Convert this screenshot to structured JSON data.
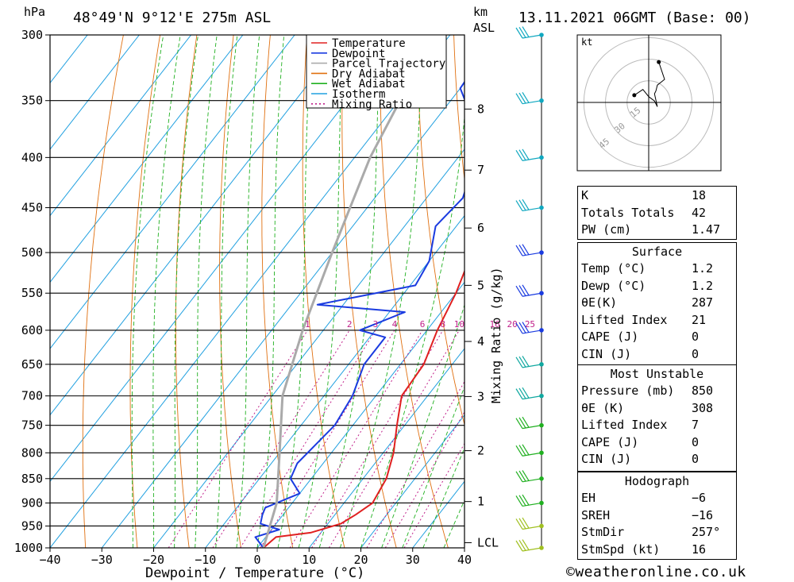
{
  "header": {
    "location": "48°49'N  9°12'E  275m  ASL",
    "datetime": "13.11.2021  06GMT  (Base: 00)",
    "hpa_unit": "hPa",
    "km_unit": "km",
    "asl_unit": "ASL"
  },
  "chart_data": {
    "type": "line",
    "title": "",
    "xlabel": "Dewpoint / Temperature (°C)",
    "ylabel": "hPa",
    "y2label": "Mixing Ratio (g/kg)",
    "x_ticks": [
      "−40",
      "−30",
      "−20",
      "−10",
      "0",
      "10",
      "20",
      "30",
      "40"
    ],
    "x_range": [
      -40,
      40
    ],
    "p_range": [
      1000,
      300
    ],
    "p_ticks": [
      "300",
      "350",
      "400",
      "450",
      "500",
      "550",
      "600",
      "650",
      "700",
      "750",
      "800",
      "850",
      "900",
      "950",
      "1000"
    ],
    "km_ticks": [
      {
        "label": "8",
        "p": 357
      },
      {
        "label": "7",
        "p": 412
      },
      {
        "label": "6",
        "p": 472
      },
      {
        "label": "5",
        "p": 540
      },
      {
        "label": "4",
        "p": 616
      },
      {
        "label": "3",
        "p": 701
      },
      {
        "label": "2",
        "p": 796
      },
      {
        "label": "1",
        "p": 897
      },
      {
        "label": "LCL",
        "p": 988
      }
    ],
    "mixing_ratio_labels": [
      "1",
      "2",
      "3",
      "4",
      "6",
      "8",
      "10",
      "16",
      "20",
      "25"
    ],
    "legend": [
      "Temperature",
      "Dewpoint",
      "Parcel Trajectory",
      "Dry Adiabat",
      "Wet Adiabat",
      "Isotherm",
      "Mixing Ratio"
    ],
    "colors": {
      "temperature": "#e02020",
      "dewpoint": "#1a3be0",
      "parcel": "#aaaaaa",
      "dry": "#e07010",
      "wet": "#20b020",
      "isotherm": "#20a0e0",
      "mixing": "#c0208a"
    },
    "series": [
      {
        "name": "Temperature",
        "points": [
          [
            1.2,
            1000
          ],
          [
            2,
            975
          ],
          [
            8,
            965
          ],
          [
            12.5,
            945
          ],
          [
            14,
            925
          ],
          [
            15.5,
            900
          ],
          [
            14.5,
            850
          ],
          [
            12,
            800
          ],
          [
            8.5,
            750
          ],
          [
            5,
            700
          ],
          [
            4.5,
            650
          ],
          [
            2,
            600
          ],
          [
            0,
            550
          ],
          [
            -3,
            500
          ],
          [
            -7,
            450
          ],
          [
            -10,
            400
          ],
          [
            -14,
            350
          ],
          [
            -17,
            300
          ]
        ]
      },
      {
        "name": "Dewpoint",
        "points": [
          [
            1.2,
            1000
          ],
          [
            -2,
            975
          ],
          [
            1.5,
            958
          ],
          [
            -3,
            945
          ],
          [
            -4,
            925
          ],
          [
            -4.5,
            910
          ],
          [
            0,
            880
          ],
          [
            -4,
            850
          ],
          [
            -5,
            820
          ],
          [
            -3.5,
            750
          ],
          [
            -4.5,
            700
          ],
          [
            -7,
            650
          ],
          [
            -7,
            610
          ],
          [
            -13,
            600
          ],
          [
            -7,
            575
          ],
          [
            -25,
            565
          ],
          [
            -9,
            540
          ],
          [
            -10,
            510
          ],
          [
            -14,
            470
          ],
          [
            -13,
            440
          ],
          [
            -18,
            385
          ],
          [
            -30,
            340
          ],
          [
            -31,
            300
          ]
        ]
      },
      {
        "name": "Parcel Trajectory",
        "points": [
          [
            1.2,
            1000
          ],
          [
            -3,
            900
          ],
          [
            -10,
            800
          ],
          [
            -18,
            700
          ],
          [
            -24,
            600
          ],
          [
            -30,
            500
          ],
          [
            -37,
            400
          ],
          [
            -43,
            300
          ]
        ]
      }
    ]
  },
  "wind_barbs": {
    "levels": [
      300,
      350,
      400,
      450,
      500,
      550,
      600,
      650,
      700,
      750,
      800,
      850,
      900,
      950,
      1000
    ]
  },
  "hodograph": {
    "unit": "kt",
    "ring_labels": [
      "15",
      "30",
      "45"
    ],
    "points": [
      [
        -10,
        5
      ],
      [
        -4,
        9
      ],
      [
        0,
        4
      ],
      [
        4,
        1
      ],
      [
        6,
        -3
      ],
      [
        4,
        6
      ],
      [
        5,
        8
      ],
      [
        6,
        12
      ],
      [
        11,
        16
      ],
      [
        7,
        28
      ]
    ]
  },
  "indices": {
    "rows": [
      {
        "label": "K",
        "value": "18"
      },
      {
        "label": "Totals Totals",
        "value": "42"
      },
      {
        "label": "PW (cm)",
        "value": "1.47"
      }
    ]
  },
  "surface": {
    "title": "Surface",
    "rows": [
      {
        "label": "Temp (°C)",
        "value": "1.2"
      },
      {
        "label": "Dewp (°C)",
        "value": "1.2"
      },
      {
        "label": "θE(K)",
        "value": "287"
      },
      {
        "label": "Lifted Index",
        "value": "21"
      },
      {
        "label": "CAPE (J)",
        "value": "0"
      },
      {
        "label": "CIN (J)",
        "value": "0"
      }
    ]
  },
  "most_unstable": {
    "title": "Most Unstable",
    "rows": [
      {
        "label": "Pressure (mb)",
        "value": "850"
      },
      {
        "label": "θE (K)",
        "value": "308"
      },
      {
        "label": "Lifted Index",
        "value": "7"
      },
      {
        "label": "CAPE (J)",
        "value": "0"
      },
      {
        "label": "CIN (J)",
        "value": "0"
      }
    ]
  },
  "hodograph_box": {
    "title": "Hodograph",
    "rows": [
      {
        "label": "EH",
        "value": "−6"
      },
      {
        "label": "SREH",
        "value": "−16"
      },
      {
        "label": "StmDir",
        "value": "257°"
      },
      {
        "label": "StmSpd (kt)",
        "value": "16"
      }
    ]
  },
  "footer": {
    "copyright": "©weatheronline.co.uk"
  }
}
